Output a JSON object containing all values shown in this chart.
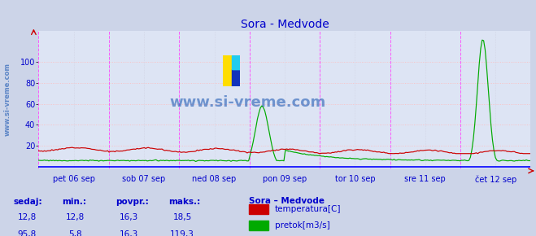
{
  "title": "Sora - Medvode",
  "bg_color": "#ccd4e8",
  "plot_bg_color": "#dde4f4",
  "grid_color_h": "#ffbbbb",
  "grid_color_v": "#ccccdd",
  "vline_color": "#ff44ff",
  "xlabel_color": "#0000cc",
  "title_color": "#0000cc",
  "watermark_color": "#0044aa",
  "ylabel_color": "#0000cc",
  "ylim": [
    -2,
    130
  ],
  "yticks": [
    20,
    40,
    60,
    80,
    100
  ],
  "n_points": 336,
  "days": [
    "pet 06 sep",
    "sob 07 sep",
    "ned 08 sep",
    "pon 09 sep",
    "tor 10 sep",
    "sre 11 sep",
    "čet 12 sep"
  ],
  "temp_color": "#cc0000",
  "flow_color": "#00aa00",
  "legend_title": "Sora – Medvode",
  "legend_items": [
    "temperatura[C]",
    "pretok[m3/s]"
  ],
  "legend_colors": [
    "#cc0000",
    "#00aa00"
  ],
  "table_headers": [
    "sedaj:",
    "min.:",
    "povpr.:",
    "maks.:"
  ],
  "table_row1": [
    "12,8",
    "12,8",
    "16,3",
    "18,5"
  ],
  "table_row2": [
    "95,8",
    "5,8",
    "16,3",
    "119,3"
  ],
  "table_color": "#0000cc",
  "sidebar_text": "www.si-vreme.com",
  "watermark_text": "www.si-vreme.com",
  "axis_line_color": "#0000ff",
  "arrow_color": "#cc0000"
}
